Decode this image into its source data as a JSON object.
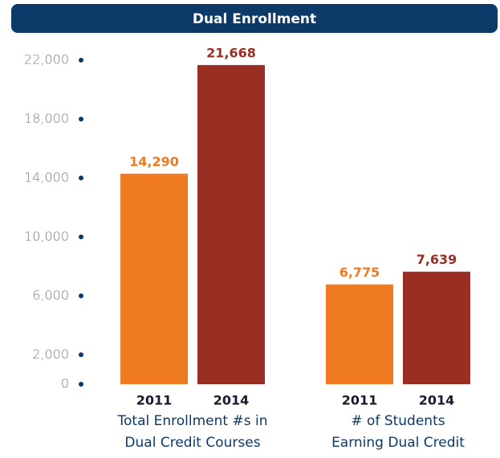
{
  "chart_data": {
    "type": "bar",
    "title": "Dual Enrollment",
    "categories": [
      "Total Enrollment #s in\nDual Credit Courses",
      "# of Students\nEarning Dual Credit"
    ],
    "series": [
      {
        "name": "2011",
        "color": "#f07a22",
        "values": [
          14290,
          6775
        ],
        "value_labels": [
          "14,290",
          "6,775"
        ]
      },
      {
        "name": "2014",
        "color": "#9a2e23",
        "values": [
          21668,
          7639
        ],
        "value_labels": [
          "21,668",
          "7,639"
        ]
      }
    ],
    "ylim": [
      0,
      22000
    ],
    "yticks": [
      0,
      {
        "value": 2000,
        "label": "2,000"
      },
      {
        "value": 6000,
        "label": "6,000"
      },
      {
        "value": 10000,
        "label": "10,000"
      },
      {
        "value": 14000,
        "label": "14,000"
      },
      {
        "value": 18000,
        "label": "18,000"
      },
      {
        "value": 22000,
        "label": "22,000"
      }
    ]
  }
}
